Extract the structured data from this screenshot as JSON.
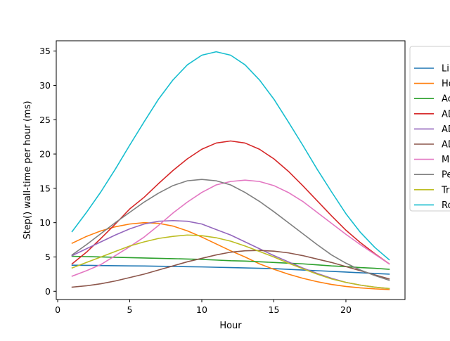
{
  "chart_data": {
    "type": "line",
    "title": "",
    "xlabel": "Hour",
    "ylabel": "Step() wall-time per hour (ms)",
    "xlim": [
      -0.1,
      24.1
    ],
    "ylim": [
      -1.2,
      36.5
    ],
    "xticks": [
      0,
      5,
      10,
      15,
      20
    ],
    "yticks": [
      0,
      5,
      10,
      15,
      20,
      25,
      30,
      35
    ],
    "grid": false,
    "legend_position": "right, partially cut off",
    "x": [
      1,
      2,
      3,
      4,
      5,
      6,
      7,
      8,
      9,
      10,
      11,
      12,
      13,
      14,
      15,
      16,
      17,
      18,
      19,
      20,
      21,
      22,
      23
    ],
    "series": [
      {
        "name": "Li",
        "color": "#1f77b4",
        "values": [
          3.8,
          3.78,
          3.75,
          3.72,
          3.7,
          3.68,
          3.65,
          3.62,
          3.58,
          3.55,
          3.5,
          3.45,
          3.4,
          3.35,
          3.3,
          3.2,
          3.1,
          3.0,
          2.9,
          2.8,
          2.7,
          2.6,
          2.5
        ]
      },
      {
        "name": "Ho",
        "color": "#ff7f0e",
        "values": [
          7.0,
          8.0,
          8.8,
          9.4,
          9.8,
          10.0,
          9.9,
          9.5,
          8.8,
          7.9,
          6.9,
          5.9,
          5.0,
          4.0,
          3.2,
          2.5,
          1.9,
          1.4,
          1.0,
          0.7,
          0.5,
          0.35,
          0.25
        ]
      },
      {
        "name": "Ac",
        "color": "#2ca02c",
        "values": [
          5.1,
          5.05,
          5.0,
          4.95,
          4.9,
          4.85,
          4.8,
          4.75,
          4.7,
          4.65,
          4.55,
          4.45,
          4.4,
          4.3,
          4.2,
          4.1,
          4.0,
          3.85,
          3.7,
          3.6,
          3.45,
          3.35,
          3.2
        ]
      },
      {
        "name": "AD",
        "color": "#d62728",
        "values": [
          4.0,
          5.7,
          7.7,
          9.8,
          12.0,
          13.7,
          15.7,
          17.6,
          19.3,
          20.7,
          21.6,
          21.9,
          21.6,
          20.7,
          19.3,
          17.5,
          15.4,
          13.2,
          11.0,
          8.9,
          7.1,
          5.5,
          4.0
        ]
      },
      {
        "name": "AD",
        "color": "#9467bd",
        "values": [
          5.2,
          6.2,
          7.2,
          8.2,
          9.1,
          9.8,
          10.2,
          10.3,
          10.2,
          9.8,
          9.0,
          8.2,
          7.2,
          6.2,
          5.2,
          4.3,
          3.4,
          2.6,
          1.9,
          1.3,
          0.9,
          0.6,
          0.4
        ]
      },
      {
        "name": "AD",
        "color": "#8c564b",
        "values": [
          0.6,
          0.8,
          1.1,
          1.5,
          2.0,
          2.5,
          3.1,
          3.7,
          4.3,
          4.8,
          5.3,
          5.7,
          5.9,
          5.95,
          5.85,
          5.6,
          5.2,
          4.7,
          4.2,
          3.6,
          3.0,
          2.4,
          1.8
        ]
      },
      {
        "name": "M",
        "color": "#e377c2",
        "values": [
          2.2,
          3.0,
          3.9,
          5.2,
          6.5,
          7.9,
          9.6,
          11.4,
          13.0,
          14.4,
          15.5,
          16.0,
          16.2,
          16.0,
          15.4,
          14.4,
          13.1,
          11.5,
          9.9,
          8.3,
          6.8,
          5.4,
          4.0
        ]
      },
      {
        "name": "Pe",
        "color": "#7f7f7f",
        "values": [
          5.3,
          6.8,
          8.4,
          10.0,
          11.5,
          13.0,
          14.3,
          15.4,
          16.1,
          16.3,
          16.1,
          15.5,
          14.4,
          13.1,
          11.6,
          10.0,
          8.4,
          6.8,
          5.3,
          4.1,
          3.1,
          2.3,
          1.6
        ]
      },
      {
        "name": "Tr",
        "color": "#bcbd22",
        "values": [
          3.4,
          4.2,
          5.0,
          5.8,
          6.6,
          7.2,
          7.7,
          8.0,
          8.2,
          8.1,
          7.8,
          7.3,
          6.6,
          5.8,
          5.0,
          4.1,
          3.3,
          2.5,
          1.8,
          1.3,
          0.9,
          0.6,
          0.4
        ]
      },
      {
        "name": "Ro",
        "color": "#17becf",
        "values": [
          8.7,
          11.5,
          14.5,
          17.8,
          21.3,
          24.7,
          28.0,
          30.8,
          33.0,
          34.4,
          34.9,
          34.4,
          33.0,
          30.8,
          28.0,
          24.7,
          21.3,
          17.8,
          14.5,
          11.3,
          8.6,
          6.4,
          4.6
        ]
      }
    ]
  }
}
